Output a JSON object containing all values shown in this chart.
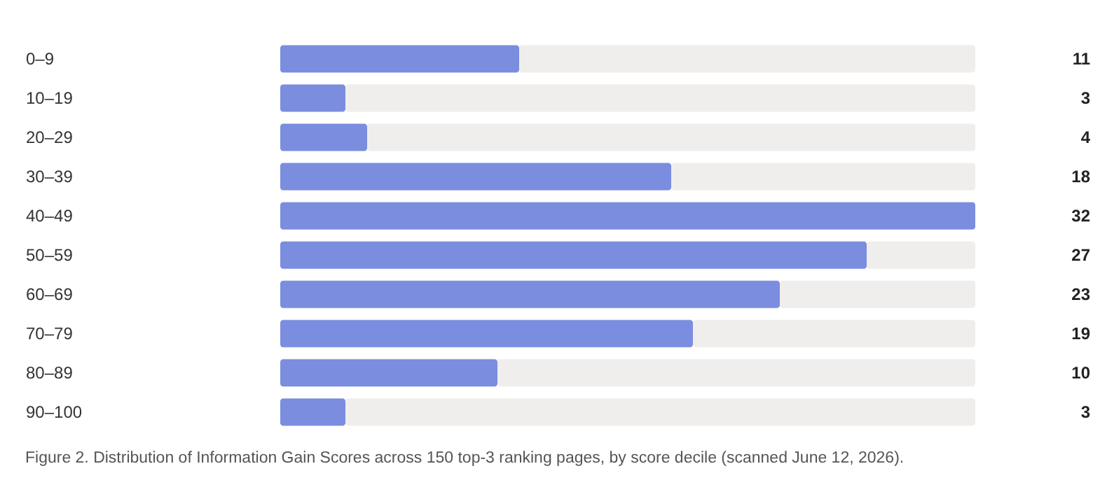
{
  "chart_data": {
    "type": "bar",
    "orientation": "horizontal",
    "stacked": true,
    "categories": [
      "0–9",
      "10–19",
      "20–29",
      "30–39",
      "40–49",
      "50–59",
      "60–69",
      "70–79",
      "80–89",
      "90–100"
    ],
    "series": [
      {
        "color": "#7b8ddf",
        "values": [
          11,
          3,
          4,
          18,
          32,
          27,
          23,
          19,
          10,
          3
        ],
        "value_labels": [
          "11",
          "3",
          "4",
          "18",
          "32",
          "27",
          "23",
          "19",
          "10",
          "3"
        ]
      },
      {
        "color": "#f0eeec",
        "values": [
          21,
          29,
          28,
          14,
          0,
          5,
          9,
          13,
          22,
          29
        ]
      }
    ],
    "xlim": [
      0,
      32
    ],
    "tick_labels": "y",
    "annotations": [
      "Figure 2. Distribution of Information Gain Scores across 150 top-3 ranking pages, by score decile (scanned June 12, 2026)."
    ]
  }
}
